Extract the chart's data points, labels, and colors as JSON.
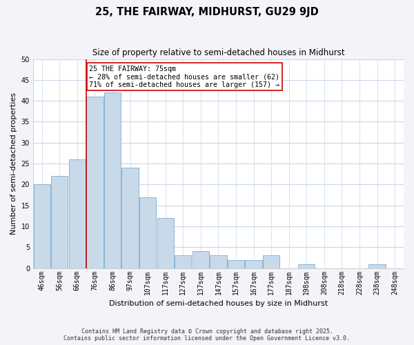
{
  "title": "25, THE FAIRWAY, MIDHURST, GU29 9JD",
  "subtitle": "Size of property relative to semi-detached houses in Midhurst",
  "xlabel": "Distribution of semi-detached houses by size in Midhurst",
  "ylabel": "Number of semi-detached properties",
  "bar_color": "#c8daea",
  "bar_edge_color": "#8ab4d4",
  "bar_categories": [
    "46sqm",
    "56sqm",
    "66sqm",
    "76sqm",
    "86sqm",
    "97sqm",
    "107sqm",
    "117sqm",
    "127sqm",
    "137sqm",
    "147sqm",
    "157sqm",
    "167sqm",
    "177sqm",
    "187sqm",
    "198sqm",
    "208sqm",
    "218sqm",
    "228sqm",
    "238sqm",
    "248sqm"
  ],
  "bar_values": [
    20,
    22,
    26,
    41,
    42,
    24,
    17,
    12,
    3,
    4,
    3,
    2,
    2,
    3,
    0,
    1,
    0,
    0,
    0,
    1,
    0
  ],
  "ylim": [
    0,
    50
  ],
  "yticks": [
    0,
    5,
    10,
    15,
    20,
    25,
    30,
    35,
    40,
    45,
    50
  ],
  "property_label": "25 THE FAIRWAY: 75sqm",
  "annotation_smaller": "← 28% of semi-detached houses are smaller (62)",
  "annotation_larger": "71% of semi-detached houses are larger (157) →",
  "vline_color": "#cc0000",
  "annotation_box_facecolor": "#ffffff",
  "annotation_box_edgecolor": "#cc0000",
  "grid_color": "#c8d8e8",
  "plot_bg_color": "#ffffff",
  "fig_bg_color": "#f4f4f8",
  "title_fontsize": 10.5,
  "subtitle_fontsize": 8.5,
  "tick_fontsize": 7,
  "ylabel_fontsize": 8,
  "xlabel_fontsize": 8,
  "footer_line1": "Contains HM Land Registry data © Crown copyright and database right 2025.",
  "footer_line2": "Contains public sector information licensed under the Open Government Licence v3.0."
}
